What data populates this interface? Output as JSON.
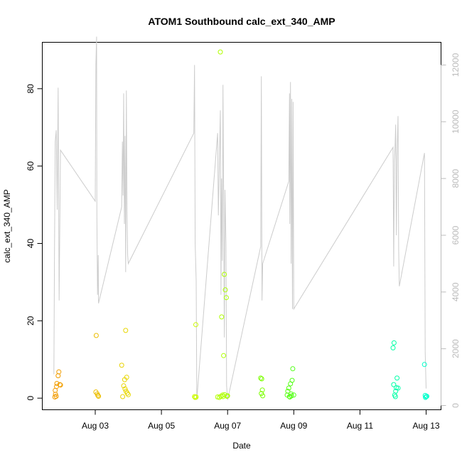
{
  "chart_data": {
    "type": "scatter",
    "title": "ATOM1 Southbound calc_ext_340_AMP",
    "xlabel": "Date",
    "ylabel": "calc_ext_340_AMP",
    "x_ticks": [
      "Aug 03",
      "Aug 05",
      "Aug 07",
      "Aug 09",
      "Aug 11",
      "Aug 13"
    ],
    "x_tick_days": [
      3,
      5,
      7,
      9,
      11,
      13
    ],
    "xlim_days": [
      1.4,
      13.45
    ],
    "ylim": [
      -3,
      92
    ],
    "y_ticks": [
      0,
      20,
      40,
      60,
      80
    ],
    "y2lim": [
      -150,
      12800
    ],
    "y2_ticks": [
      0,
      2000,
      4000,
      6000,
      8000,
      10000,
      12000
    ],
    "grid": false,
    "series": [
      {
        "axis": "left",
        "marker": "open-circle",
        "color_scale": [
          "#f29900",
          "#e8d800",
          "#c8ff00",
          "#66ff00",
          "#00ff70",
          "#00ffcc"
        ],
        "points": [
          [
            1.78,
            0.3
          ],
          [
            1.8,
            1.0
          ],
          [
            1.82,
            0.5
          ],
          [
            1.79,
            2.0
          ],
          [
            1.83,
            3.0
          ],
          [
            1.84,
            3.8
          ],
          [
            1.88,
            5.8
          ],
          [
            1.9,
            6.8
          ],
          [
            1.93,
            3.5
          ],
          [
            1.95,
            3.4
          ],
          [
            3.03,
            16.2
          ],
          [
            3.02,
            1.6
          ],
          [
            3.06,
            1.1
          ],
          [
            3.08,
            0.7
          ],
          [
            3.1,
            0.5
          ],
          [
            3.8,
            8.5
          ],
          [
            3.83,
            0.4
          ],
          [
            3.86,
            3.2
          ],
          [
            3.89,
            4.8
          ],
          [
            3.92,
            17.5
          ],
          [
            3.9,
            2.4
          ],
          [
            3.95,
            5.4
          ],
          [
            3.97,
            1.3
          ],
          [
            4.0,
            0.9
          ],
          [
            3.93,
            1.8
          ],
          [
            6.0,
            0.4
          ],
          [
            6.02,
            0.2
          ],
          [
            6.05,
            0.3
          ],
          [
            6.04,
            19.0
          ],
          [
            6.7,
            0.3
          ],
          [
            6.75,
            0.2
          ],
          [
            6.78,
            89.5
          ],
          [
            6.8,
            0.5
          ],
          [
            6.82,
            21.0
          ],
          [
            6.86,
            0.4
          ],
          [
            6.88,
            11.0
          ],
          [
            6.9,
            32.0
          ],
          [
            6.93,
            28.0
          ],
          [
            6.96,
            26.0
          ],
          [
            6.91,
            0.9
          ],
          [
            6.98,
            0.5
          ],
          [
            6.85,
            0.8
          ],
          [
            7.0,
            0.6
          ],
          [
            8.0,
            5.2
          ],
          [
            8.03,
            5.0
          ],
          [
            8.05,
            2.1
          ],
          [
            8.02,
            1.2
          ],
          [
            8.06,
            0.6
          ],
          [
            8.8,
            0.8
          ],
          [
            8.82,
            1.8
          ],
          [
            8.85,
            2.6
          ],
          [
            8.87,
            0.4
          ],
          [
            8.9,
            3.7
          ],
          [
            8.92,
            1.1
          ],
          [
            8.95,
            4.6
          ],
          [
            8.97,
            7.6
          ],
          [
            9.0,
            0.8
          ],
          [
            8.88,
            0.3
          ],
          [
            8.93,
            0.6
          ],
          [
            12.0,
            13.0
          ],
          [
            12.03,
            14.3
          ],
          [
            12.02,
            3.5
          ],
          [
            12.05,
            0.8
          ],
          [
            12.08,
            1.8
          ],
          [
            12.1,
            2.7
          ],
          [
            12.12,
            5.2
          ],
          [
            12.15,
            2.6
          ],
          [
            12.07,
            0.4
          ],
          [
            12.95,
            8.7
          ],
          [
            12.97,
            0.7
          ],
          [
            13.0,
            0.4
          ],
          [
            12.98,
            0.2
          ],
          [
            13.02,
            0.5
          ]
        ]
      },
      {
        "axis": "right",
        "color": "#cccccc",
        "line": [
          [
            1.75,
            1100
          ],
          [
            1.77,
            5500
          ],
          [
            1.79,
            9300
          ],
          [
            1.82,
            9700
          ],
          [
            1.85,
            6900
          ],
          [
            1.88,
            11200
          ],
          [
            1.91,
            3700
          ],
          [
            1.95,
            9000
          ],
          [
            3.0,
            7200
          ],
          [
            3.02,
            12000
          ],
          [
            3.04,
            13000
          ],
          [
            3.05,
            6700
          ],
          [
            3.07,
            3900
          ],
          [
            3.09,
            5300
          ],
          [
            3.1,
            3600
          ],
          [
            3.8,
            7000
          ],
          [
            3.82,
            9300
          ],
          [
            3.84,
            7400
          ],
          [
            3.86,
            11000
          ],
          [
            3.88,
            6400
          ],
          [
            3.9,
            9500
          ],
          [
            3.92,
            4700
          ],
          [
            3.94,
            11100
          ],
          [
            3.96,
            6800
          ],
          [
            3.98,
            5300
          ],
          [
            4.0,
            5000
          ],
          [
            5.98,
            9600
          ],
          [
            6.0,
            12000
          ],
          [
            6.02,
            5700
          ],
          [
            6.05,
            4400
          ],
          [
            6.07,
            200
          ],
          [
            6.7,
            9600
          ],
          [
            6.72,
            6700
          ],
          [
            6.75,
            8500
          ],
          [
            6.78,
            10400
          ],
          [
            6.8,
            3900
          ],
          [
            6.82,
            8000
          ],
          [
            6.84,
            5100
          ],
          [
            6.86,
            11300
          ],
          [
            6.88,
            7700
          ],
          [
            6.9,
            2400
          ],
          [
            6.92,
            7600
          ],
          [
            6.95,
            5700
          ],
          [
            6.97,
            700
          ],
          [
            7.0,
            200
          ],
          [
            8.0,
            5600
          ],
          [
            8.02,
            11600
          ],
          [
            8.04,
            3700
          ],
          [
            8.06,
            5000
          ],
          [
            8.85,
            7900
          ],
          [
            8.87,
            11000
          ],
          [
            8.88,
            6400
          ],
          [
            8.9,
            11400
          ],
          [
            8.92,
            5000
          ],
          [
            8.94,
            10800
          ],
          [
            8.96,
            3400
          ],
          [
            8.98,
            10700
          ],
          [
            9.0,
            3400
          ],
          [
            12.0,
            9100
          ],
          [
            12.02,
            4900
          ],
          [
            12.04,
            8600
          ],
          [
            12.06,
            9100
          ],
          [
            12.08,
            9900
          ],
          [
            12.1,
            6000
          ],
          [
            12.12,
            8800
          ],
          [
            12.15,
            10200
          ],
          [
            12.17,
            5500
          ],
          [
            12.19,
            4200
          ],
          [
            12.95,
            8900
          ],
          [
            12.97,
            1900
          ],
          [
            13.0,
            600
          ]
        ]
      }
    ]
  }
}
